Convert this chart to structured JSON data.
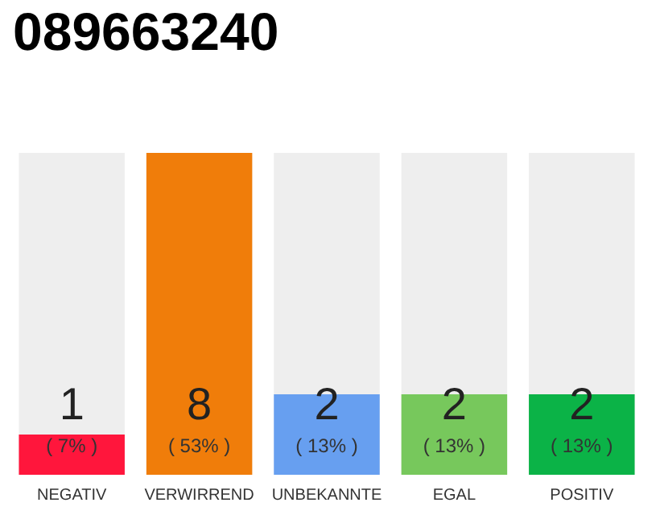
{
  "chart_data": {
    "type": "bar",
    "title": "089663240",
    "categories": [
      "NEGATIV",
      "VERWIRREND",
      "UNBEKANNTE",
      "EGAL",
      "POSITIV"
    ],
    "values": [
      1,
      8,
      2,
      2,
      2
    ],
    "colors": [
      "#ff163c",
      "#f07d0a",
      "#679ff0",
      "#77c85c",
      "#0bb347"
    ],
    "value_labels": [
      "1\n( 7% )",
      "8\n( 53% )",
      "2\n( 13% )",
      "2\n( 13% )",
      "2\n( 13% )"
    ]
  }
}
